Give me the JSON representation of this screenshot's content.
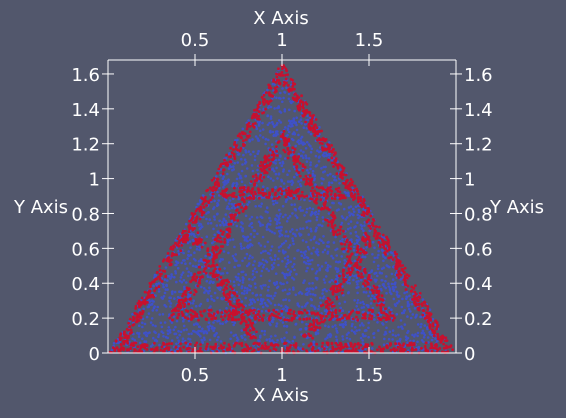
{
  "chart_data": {
    "type": "scatter",
    "x_axis_title": "X Axis",
    "y_axis_title": "Y Axis",
    "x_ticks": [
      "0.5",
      "1",
      "1.5"
    ],
    "x_tick_values": [
      0.5,
      1,
      1.5
    ],
    "y_ticks": [
      "0",
      "0.2",
      "0.4",
      "0.6",
      "0.8",
      "1",
      "1.2",
      "1.4",
      "1.6"
    ],
    "y_tick_values": [
      0,
      0.2,
      0.4,
      0.6,
      0.8,
      1,
      1.2,
      1.4,
      1.6
    ],
    "xlim": [
      0,
      2
    ],
    "ylim": [
      0,
      1.68
    ],
    "triangle_vertices": [
      [
        0,
        0
      ],
      [
        2,
        0
      ],
      [
        1,
        1.6667
      ]
    ],
    "series_colors": {
      "blue": "#3f51c8",
      "red": "#c8102e"
    },
    "grid": false
  }
}
